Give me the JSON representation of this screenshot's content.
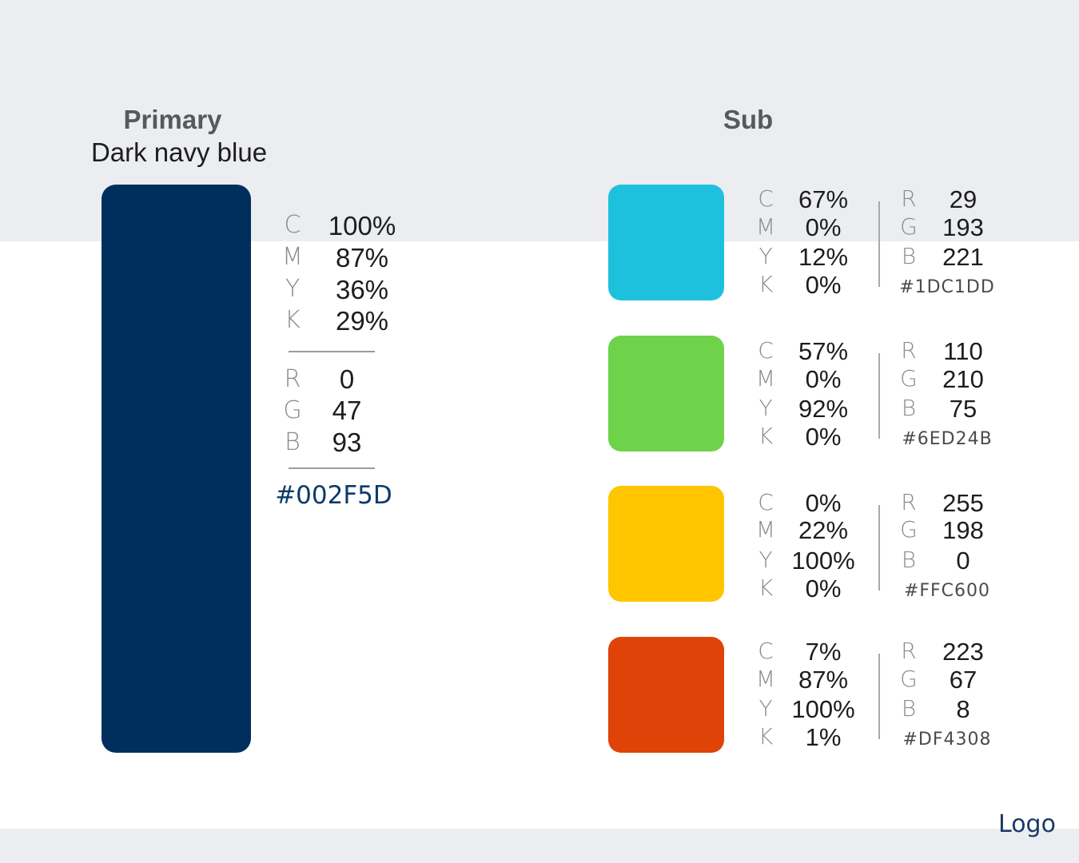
{
  "primary": {
    "title": "Primary",
    "subtitle": "Dark navy blue",
    "color": "#002F5D",
    "cmyk": [
      {
        "label": "C",
        "value": "100%"
      },
      {
        "label": "M",
        "value": "87%"
      },
      {
        "label": "Y",
        "value": "36%"
      },
      {
        "label": "K",
        "value": "29%"
      }
    ],
    "rgb": [
      {
        "label": "R",
        "value": "0"
      },
      {
        "label": "G",
        "value": "47"
      },
      {
        "label": "B",
        "value": "93"
      }
    ],
    "hex": "#002F5D"
  },
  "sub": {
    "title": "Sub",
    "colors": [
      {
        "color": "#1DC1DD",
        "cmyk": [
          {
            "label": "C",
            "value": "67%"
          },
          {
            "label": "M",
            "value": "0%"
          },
          {
            "label": "Y",
            "value": "12%"
          },
          {
            "label": "K",
            "value": "0%"
          }
        ],
        "rgb": [
          {
            "label": "R",
            "value": "29"
          },
          {
            "label": "G",
            "value": "193"
          },
          {
            "label": "B",
            "value": "221"
          }
        ],
        "hex": "#1DC1DD"
      },
      {
        "color": "#6ED24B",
        "cmyk": [
          {
            "label": "C",
            "value": "57%"
          },
          {
            "label": "M",
            "value": "0%"
          },
          {
            "label": "Y",
            "value": "92%"
          },
          {
            "label": "K",
            "value": "0%"
          }
        ],
        "rgb": [
          {
            "label": "R",
            "value": "110"
          },
          {
            "label": "G",
            "value": "210"
          },
          {
            "label": "B",
            "value": "75"
          }
        ],
        "hex": "#6ED24B"
      },
      {
        "color": "#FFC600",
        "cmyk": [
          {
            "label": "C",
            "value": "0%"
          },
          {
            "label": "M",
            "value": "22%"
          },
          {
            "label": "Y",
            "value": "100%"
          },
          {
            "label": "K",
            "value": "0%"
          }
        ],
        "rgb": [
          {
            "label": "R",
            "value": "255"
          },
          {
            "label": "G",
            "value": "198"
          },
          {
            "label": "B",
            "value": "0"
          }
        ],
        "hex": "#FFC600"
      },
      {
        "color": "#DF4308",
        "cmyk": [
          {
            "label": "C",
            "value": "7%"
          },
          {
            "label": "M",
            "value": "87%"
          },
          {
            "label": "Y",
            "value": "100%"
          },
          {
            "label": "K",
            "value": "1%"
          }
        ],
        "rgb": [
          {
            "label": "R",
            "value": "223"
          },
          {
            "label": "G",
            "value": "67"
          },
          {
            "label": "B",
            "value": "8"
          }
        ],
        "hex": "#DF4308"
      }
    ]
  },
  "footer": {
    "logo": "Logo"
  }
}
